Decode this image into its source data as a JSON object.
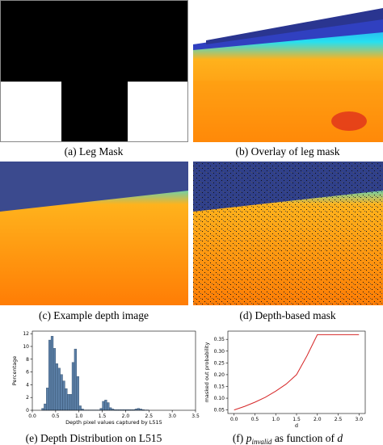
{
  "panels": [
    {
      "caption": "(a) Leg Mask"
    },
    {
      "caption": "(b) Overlay of leg mask"
    },
    {
      "caption": "(c) Example depth image"
    },
    {
      "caption": "(d) Depth-based mask"
    },
    {
      "caption": "(e) Depth Distribution on L515"
    },
    {
      "caption": {
        "label": "(f)",
        "symbol": "p",
        "subscript": "invalid",
        "text": "as function of",
        "variable": "d"
      }
    }
  ],
  "chart_data": [
    {
      "type": "histogram",
      "color": "#5b7fa6",
      "x_label": "Depth pixel values captured by L515",
      "y_label": "Percentage",
      "bins": [
        0.2,
        0.25,
        0.3,
        0.35,
        0.4,
        0.45,
        0.5,
        0.55,
        0.6,
        0.65,
        0.7,
        0.75,
        0.8,
        0.85,
        0.9,
        0.95,
        1.0,
        1.05,
        1.1,
        1.15,
        1.2,
        1.25,
        1.3,
        1.35,
        1.4,
        1.45,
        1.5,
        1.55,
        1.6,
        1.65,
        1.7,
        1.75,
        1.8,
        1.85,
        1.9,
        1.95,
        2.0,
        2.05,
        2.1,
        2.15,
        2.2,
        2.25,
        2.3,
        2.35,
        2.4,
        2.45,
        2.5
      ],
      "values": [
        0.3,
        1.0,
        3.5,
        11,
        11.6,
        9.7,
        7.3,
        6.6,
        5.6,
        4.6,
        3.4,
        2.5,
        2.5,
        7.5,
        9.6,
        5.3,
        0.7,
        0.2,
        0.05,
        0.05,
        0.05,
        0.05,
        0.05,
        0.05,
        0.05,
        0.3,
        1.4,
        1.6,
        1.2,
        0.4,
        0.2,
        0.1,
        0.1,
        0.1,
        0.1,
        0.1,
        0.1,
        0.1,
        0.1,
        0.1,
        0.2,
        0.3,
        0.2,
        0.1,
        0.05,
        0.05
      ],
      "xlim": [
        0,
        3.5
      ],
      "xticks": [
        {
          "value": 0,
          "label": "0.0"
        },
        0.5,
        {
          "value": 1,
          "label": "1.0"
        },
        1.5,
        {
          "value": 2,
          "label": "2.0"
        },
        2.5,
        {
          "value": 3,
          "label": "3.0"
        },
        3.5
      ],
      "ylim": [
        0,
        12.4
      ],
      "yticks": [
        0,
        2,
        4,
        6,
        8,
        10,
        12
      ]
    },
    {
      "type": "line",
      "color": "#d62728",
      "x_label": "d",
      "y_label": "masked out probability",
      "x": [
        0,
        0.25,
        0.5,
        0.75,
        1.0,
        1.25,
        1.5,
        1.75,
        2.0,
        2.5,
        3.0
      ],
      "values": [
        0.05,
        0.065,
        0.083,
        0.104,
        0.13,
        0.16,
        0.2,
        0.28,
        0.37,
        0.37,
        0.37
      ],
      "xlim": [
        -0.15,
        3.15
      ],
      "xticks": [
        {
          "value": 0,
          "label": "0.0"
        },
        0.5,
        {
          "value": 1,
          "label": "1.0"
        },
        1.5,
        {
          "value": 2,
          "label": "2.0"
        },
        2.5,
        {
          "value": 3,
          "label": "3.0"
        }
      ],
      "ylim": [
        0.035,
        0.385
      ],
      "yticks": [
        0.05,
        {
          "value": 0.1,
          "label": "0.10"
        },
        0.15,
        {
          "value": 0.2,
          "label": "0.20"
        },
        0.25,
        {
          "value": 0.3,
          "label": "0.30"
        },
        0.35
      ]
    }
  ]
}
